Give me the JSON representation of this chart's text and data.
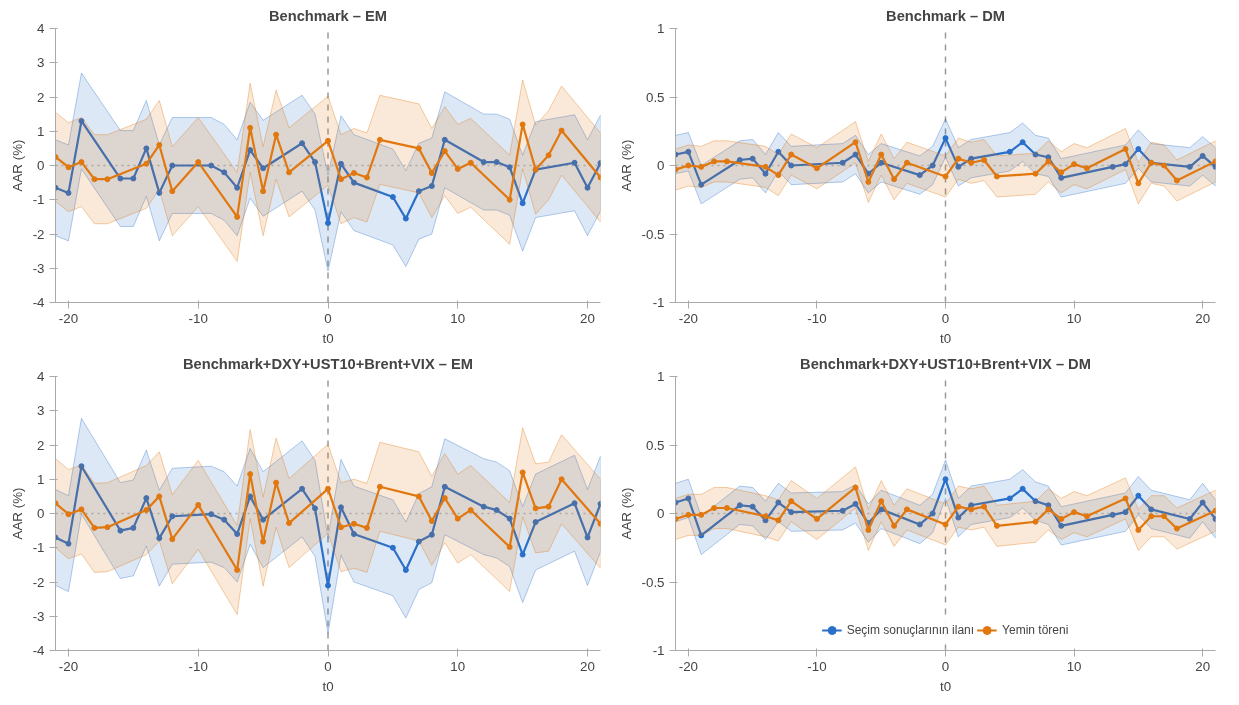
{
  "chart_data": [
    {
      "type": "line",
      "title": "Benchmark – EM",
      "xlabel": "t0",
      "ylabel": "AAR (%)",
      "xlim": [
        -21,
        21
      ],
      "xticks": [
        -20,
        -10,
        0,
        10,
        20
      ],
      "ylim": [
        -4,
        4
      ],
      "yticks": [
        -4,
        -3,
        -2,
        -1,
        0,
        1,
        2,
        3,
        4
      ],
      "grid": false,
      "marker": "circle",
      "ref_lines": [
        {
          "axis": "x",
          "value": 0,
          "line_style": "dashed",
          "color": "#999999"
        },
        {
          "axis": "y",
          "value": 0,
          "line_style": "dotted",
          "color": "#bbbbbb"
        }
      ],
      "series": [
        {
          "color": "#2a6fc9",
          "x": [
            -21,
            -20,
            -19,
            -16,
            -15,
            -14,
            -13,
            -12,
            -9,
            -8,
            -7,
            -6,
            -5,
            -2,
            -1,
            0,
            1,
            2,
            5,
            6,
            7,
            8,
            9,
            12,
            13,
            14,
            15,
            16,
            19,
            20,
            21
          ],
          "values": [
            -0.65,
            -0.8,
            1.3,
            -0.38,
            -0.38,
            0.5,
            -0.8,
            0.0,
            0.0,
            -0.2,
            -0.65,
            0.45,
            -0.08,
            0.65,
            0.1,
            -1.68,
            0.05,
            -0.5,
            -0.92,
            -1.55,
            -0.75,
            -0.6,
            0.75,
            0.1,
            0.1,
            -0.05,
            -1.1,
            -0.12,
            0.08,
            -0.65,
            0.07
          ],
          "lower": [
            -2.05,
            -2.2,
            -0.1,
            -1.78,
            -1.78,
            -0.9,
            -2.2,
            -1.4,
            -1.4,
            -1.6,
            -2.05,
            -0.95,
            -1.48,
            -0.75,
            -1.3,
            -3.08,
            -1.35,
            -1.9,
            -2.32,
            -2.95,
            -2.15,
            -2.0,
            -0.65,
            -1.3,
            -1.3,
            -1.45,
            -2.5,
            -1.52,
            -1.32,
            -2.05,
            -1.33
          ],
          "upper": [
            0.75,
            0.6,
            2.7,
            1.02,
            1.02,
            1.9,
            0.6,
            1.4,
            1.4,
            1.2,
            0.75,
            1.85,
            1.32,
            2.05,
            1.5,
            -0.28,
            1.45,
            0.9,
            0.48,
            -0.15,
            0.65,
            0.8,
            2.15,
            1.5,
            1.5,
            1.35,
            0.3,
            1.28,
            1.48,
            0.75,
            1.47
          ]
        },
        {
          "color": "#e0780f",
          "x": [
            -21,
            -20,
            -19,
            -18,
            -17,
            -14,
            -13,
            -12,
            -10,
            -7,
            -6,
            -5,
            -4,
            -3,
            0,
            1,
            2,
            3,
            4,
            7,
            8,
            9,
            10,
            11,
            14,
            15,
            16,
            17,
            18,
            21
          ],
          "values": [
            0.25,
            -0.05,
            0.1,
            -0.4,
            -0.4,
            0.05,
            0.6,
            -0.75,
            0.1,
            -1.5,
            1.1,
            -0.75,
            0.9,
            -0.2,
            0.72,
            -0.4,
            -0.22,
            -0.35,
            0.75,
            0.5,
            -0.22,
            0.42,
            -0.1,
            0.08,
            -1.0,
            1.2,
            -0.12,
            0.3,
            1.02,
            -0.35
          ],
          "lower": [
            -1.05,
            -1.35,
            -1.2,
            -1.7,
            -1.7,
            -1.25,
            -0.7,
            -2.05,
            -1.2,
            -2.8,
            -0.2,
            -2.05,
            -0.4,
            -1.5,
            -0.58,
            -1.7,
            -1.52,
            -1.65,
            -0.55,
            -0.8,
            -1.52,
            -0.88,
            -1.4,
            -1.22,
            -2.3,
            -0.1,
            -1.42,
            -1.0,
            -0.28,
            -1.65
          ],
          "upper": [
            1.55,
            1.25,
            1.4,
            0.9,
            0.9,
            1.35,
            1.9,
            0.55,
            1.4,
            -0.2,
            2.4,
            0.55,
            2.2,
            1.1,
            2.02,
            0.9,
            1.08,
            0.95,
            2.05,
            1.8,
            1.08,
            1.72,
            1.2,
            1.38,
            0.3,
            2.5,
            1.18,
            1.6,
            2.32,
            0.95
          ]
        }
      ]
    },
    {
      "type": "line",
      "title": "Benchmark – DM",
      "xlabel": "t0",
      "ylabel": "AAR (%)",
      "xlim": [
        -21,
        21
      ],
      "xticks": [
        -20,
        -10,
        0,
        10,
        20
      ],
      "ylim": [
        -1,
        1
      ],
      "yticks": [
        -1,
        -0.5,
        0,
        0.5,
        1
      ],
      "grid": false,
      "marker": "circle",
      "ref_lines": [
        {
          "axis": "x",
          "value": 0,
          "line_style": "dashed",
          "color": "#999999"
        },
        {
          "axis": "y",
          "value": 0,
          "line_style": "dotted",
          "color": "#bbbbbb"
        }
      ],
      "series": [
        {
          "color": "#2a6fc9",
          "x": [
            -21,
            -20,
            -19,
            -16,
            -15,
            -14,
            -13,
            -12,
            -8,
            -7,
            -6,
            -5,
            -2,
            -1,
            0,
            1,
            2,
            5,
            6,
            7,
            8,
            9,
            13,
            14,
            15,
            16,
            19,
            20,
            21
          ],
          "values": [
            0.08,
            0.1,
            -0.14,
            0.04,
            0.05,
            -0.06,
            0.1,
            0.0,
            0.02,
            0.08,
            -0.06,
            0.02,
            -0.07,
            0.0,
            0.2,
            -0.01,
            0.05,
            0.1,
            0.17,
            0.08,
            0.06,
            -0.09,
            -0.01,
            0.01,
            0.12,
            0.02,
            -0.01,
            0.07,
            -0.01
          ],
          "lower": [
            -0.06,
            -0.04,
            -0.28,
            -0.1,
            -0.09,
            -0.2,
            -0.04,
            -0.14,
            -0.12,
            -0.06,
            -0.2,
            -0.12,
            -0.21,
            -0.14,
            0.06,
            -0.15,
            -0.09,
            -0.04,
            0.03,
            -0.06,
            -0.08,
            -0.23,
            -0.15,
            -0.13,
            -0.02,
            -0.12,
            -0.15,
            -0.07,
            -0.15
          ],
          "upper": [
            0.22,
            0.24,
            0.0,
            0.18,
            0.19,
            0.08,
            0.24,
            0.14,
            0.16,
            0.22,
            0.08,
            0.16,
            0.07,
            0.14,
            0.34,
            0.13,
            0.19,
            0.24,
            0.31,
            0.22,
            0.2,
            0.05,
            0.13,
            0.15,
            0.26,
            0.16,
            0.13,
            0.21,
            0.13
          ]
        },
        {
          "color": "#e0780f",
          "x": [
            -21,
            -20,
            -19,
            -18,
            -17,
            -14,
            -13,
            -12,
            -10,
            -7,
            -6,
            -5,
            -4,
            -3,
            0,
            1,
            2,
            3,
            4,
            7,
            8,
            9,
            10,
            11,
            14,
            15,
            16,
            17,
            18,
            21
          ],
          "values": [
            -0.03,
            0.0,
            -0.01,
            0.03,
            0.03,
            -0.01,
            -0.07,
            0.08,
            -0.02,
            0.17,
            -0.12,
            0.08,
            -0.1,
            0.02,
            -0.08,
            0.05,
            0.02,
            0.04,
            -0.08,
            -0.06,
            0.03,
            -0.05,
            0.01,
            -0.02,
            0.12,
            -0.13,
            0.02,
            0.0,
            -0.11,
            0.03
          ],
          "lower": [
            -0.18,
            -0.15,
            -0.16,
            -0.12,
            -0.12,
            -0.16,
            -0.22,
            -0.07,
            -0.17,
            0.02,
            -0.27,
            -0.07,
            -0.25,
            -0.13,
            -0.23,
            -0.1,
            -0.13,
            -0.11,
            -0.23,
            -0.21,
            -0.12,
            -0.2,
            -0.14,
            -0.17,
            -0.03,
            -0.28,
            -0.13,
            -0.15,
            -0.26,
            -0.12
          ],
          "upper": [
            0.12,
            0.15,
            0.14,
            0.18,
            0.18,
            0.14,
            0.08,
            0.23,
            0.13,
            0.32,
            0.03,
            0.23,
            0.05,
            0.17,
            0.07,
            0.2,
            0.17,
            0.19,
            0.07,
            0.09,
            0.18,
            0.1,
            0.16,
            0.13,
            0.27,
            0.02,
            0.17,
            0.15,
            0.04,
            0.18
          ]
        }
      ]
    },
    {
      "type": "line",
      "title": "Benchmark+DXY+UST10+Brent+VIX – EM",
      "xlabel": "t0",
      "ylabel": "AAR (%)",
      "xlim": [
        -21,
        21
      ],
      "xticks": [
        -20,
        -10,
        0,
        10,
        20
      ],
      "ylim": [
        -4,
        4
      ],
      "yticks": [
        -4,
        -3,
        -2,
        -1,
        0,
        1,
        2,
        3,
        4
      ],
      "grid": false,
      "marker": "circle",
      "ref_lines": [
        {
          "axis": "x",
          "value": 0,
          "line_style": "dashed",
          "color": "#999999"
        },
        {
          "axis": "y",
          "value": 0,
          "line_style": "dotted",
          "color": "#bbbbbb"
        }
      ],
      "series": [
        {
          "color": "#2a6fc9",
          "x": [
            -21,
            -20,
            -19,
            -16,
            -15,
            -14,
            -13,
            -12,
            -9,
            -8,
            -7,
            -6,
            -5,
            -2,
            -1,
            0,
            1,
            2,
            5,
            6,
            7,
            8,
            9,
            12,
            13,
            14,
            15,
            16,
            19,
            20,
            21
          ],
          "values": [
            -0.7,
            -0.88,
            1.38,
            -0.5,
            -0.42,
            0.45,
            -0.72,
            -0.08,
            -0.02,
            -0.18,
            -0.6,
            0.5,
            -0.18,
            0.72,
            0.15,
            -2.1,
            0.18,
            -0.6,
            -1.0,
            -1.65,
            -0.82,
            -0.62,
            0.78,
            0.2,
            0.1,
            -0.15,
            -1.2,
            -0.25,
            0.3,
            -0.7,
            0.28
          ],
          "lower": [
            -2.1,
            -2.28,
            -0.02,
            -1.9,
            -1.82,
            -0.95,
            -2.12,
            -1.48,
            -1.42,
            -1.58,
            -2.0,
            -0.9,
            -1.58,
            -0.68,
            -1.25,
            -3.5,
            -1.22,
            -2.0,
            -2.4,
            -3.05,
            -2.22,
            -2.02,
            -0.62,
            -1.2,
            -1.3,
            -1.55,
            -2.6,
            -1.65,
            -1.1,
            -2.1,
            -1.12
          ],
          "upper": [
            0.7,
            0.52,
            2.78,
            0.9,
            0.98,
            1.85,
            0.68,
            1.32,
            1.38,
            1.22,
            0.8,
            1.9,
            1.22,
            2.12,
            1.55,
            -0.7,
            1.58,
            0.8,
            0.4,
            -0.25,
            0.58,
            0.78,
            2.18,
            1.6,
            1.5,
            1.25,
            0.2,
            1.15,
            1.7,
            0.7,
            1.68
          ]
        },
        {
          "color": "#e0780f",
          "x": [
            -21,
            -20,
            -19,
            -18,
            -17,
            -14,
            -13,
            -12,
            -10,
            -7,
            -6,
            -5,
            -4,
            -3,
            0,
            1,
            2,
            3,
            4,
            7,
            8,
            9,
            10,
            11,
            14,
            15,
            16,
            17,
            18,
            21
          ],
          "values": [
            0.3,
            -0.02,
            0.12,
            -0.42,
            -0.4,
            0.1,
            0.5,
            -0.75,
            0.25,
            -1.65,
            1.15,
            -0.82,
            0.9,
            -0.28,
            0.72,
            -0.4,
            -0.3,
            -0.42,
            0.78,
            0.5,
            -0.22,
            0.45,
            -0.15,
            0.1,
            -0.98,
            1.2,
            0.15,
            0.2,
            1.0,
            -0.3
          ],
          "lower": [
            -1.0,
            -1.32,
            -1.18,
            -1.72,
            -1.7,
            -1.2,
            -0.8,
            -2.05,
            -1.05,
            -2.95,
            -0.15,
            -2.12,
            -0.4,
            -1.58,
            -0.58,
            -1.7,
            -1.6,
            -1.72,
            -0.52,
            -0.8,
            -1.52,
            -0.85,
            -1.45,
            -1.2,
            -2.28,
            -0.1,
            -1.15,
            -1.1,
            -0.3,
            -1.6
          ],
          "upper": [
            1.6,
            1.28,
            1.42,
            0.88,
            0.9,
            1.4,
            1.8,
            0.55,
            1.55,
            -0.35,
            2.45,
            0.48,
            2.2,
            1.02,
            2.02,
            0.9,
            1.0,
            0.88,
            2.08,
            1.8,
            1.08,
            1.75,
            1.15,
            1.4,
            0.32,
            2.5,
            1.45,
            1.5,
            2.3,
            1.0
          ]
        }
      ]
    },
    {
      "type": "line",
      "title": "Benchmark+DXY+UST10+Brent+VIX – DM",
      "xlabel": "t0",
      "ylabel": "AAR (%)",
      "xlim": [
        -21,
        21
      ],
      "xticks": [
        -20,
        -10,
        0,
        10,
        20
      ],
      "ylim": [
        -1,
        1
      ],
      "yticks": [
        -1,
        -0.5,
        0,
        0.5,
        1
      ],
      "grid": false,
      "marker": "circle",
      "legend": "bottom",
      "ref_lines": [
        {
          "axis": "x",
          "value": 0,
          "line_style": "dashed",
          "color": "#999999"
        },
        {
          "axis": "y",
          "value": 0,
          "line_style": "dotted",
          "color": "#bbbbbb"
        }
      ],
      "series": [
        {
          "name": "Seçim sonuçlarının ilanı",
          "color": "#2a6fc9",
          "x": [
            -21,
            -20,
            -19,
            -16,
            -15,
            -14,
            -13,
            -12,
            -8,
            -7,
            -6,
            -5,
            -2,
            -1,
            0,
            1,
            2,
            5,
            6,
            7,
            8,
            9,
            13,
            14,
            15,
            16,
            19,
            20,
            21
          ],
          "values": [
            0.08,
            0.11,
            -0.16,
            0.06,
            0.05,
            -0.05,
            0.08,
            0.01,
            0.02,
            0.07,
            -0.07,
            0.03,
            -0.08,
            0.0,
            0.25,
            -0.03,
            0.06,
            0.11,
            0.18,
            0.09,
            0.06,
            -0.09,
            -0.01,
            0.01,
            0.13,
            0.03,
            -0.04,
            0.08,
            -0.04
          ],
          "lower": [
            -0.06,
            -0.03,
            -0.3,
            -0.08,
            -0.09,
            -0.19,
            -0.06,
            -0.13,
            -0.12,
            -0.07,
            -0.21,
            -0.11,
            -0.22,
            -0.14,
            0.11,
            -0.17,
            -0.08,
            -0.03,
            0.04,
            -0.05,
            -0.08,
            -0.23,
            -0.15,
            -0.13,
            -0.01,
            -0.11,
            -0.18,
            -0.06,
            -0.18
          ],
          "upper": [
            0.22,
            0.25,
            -0.02,
            0.2,
            0.19,
            0.09,
            0.22,
            0.15,
            0.16,
            0.21,
            0.07,
            0.17,
            0.06,
            0.14,
            0.39,
            0.11,
            0.2,
            0.25,
            0.32,
            0.23,
            0.2,
            0.05,
            0.13,
            0.15,
            0.27,
            0.17,
            0.1,
            0.22,
            0.1
          ]
        },
        {
          "name": "Yemin töreni",
          "color": "#e0780f",
          "x": [
            -21,
            -20,
            -19,
            -18,
            -17,
            -14,
            -13,
            -12,
            -10,
            -7,
            -6,
            -5,
            -4,
            -3,
            0,
            1,
            2,
            3,
            4,
            7,
            8,
            9,
            10,
            11,
            14,
            15,
            16,
            17,
            18,
            21
          ],
          "values": [
            -0.04,
            -0.01,
            -0.01,
            0.04,
            0.04,
            -0.02,
            -0.05,
            0.09,
            -0.04,
            0.19,
            -0.12,
            0.09,
            -0.09,
            0.03,
            -0.08,
            0.05,
            0.03,
            0.05,
            -0.09,
            -0.06,
            0.03,
            -0.04,
            0.01,
            -0.02,
            0.11,
            -0.12,
            -0.02,
            -0.02,
            -0.11,
            0.02
          ],
          "lower": [
            -0.19,
            -0.16,
            -0.16,
            -0.11,
            -0.11,
            -0.17,
            -0.2,
            -0.06,
            -0.19,
            0.04,
            -0.27,
            -0.06,
            -0.24,
            -0.12,
            -0.23,
            -0.1,
            -0.12,
            -0.1,
            -0.24,
            -0.21,
            -0.12,
            -0.19,
            -0.14,
            -0.17,
            -0.04,
            -0.27,
            -0.17,
            -0.17,
            -0.26,
            -0.13
          ],
          "upper": [
            0.11,
            0.14,
            0.14,
            0.19,
            0.19,
            0.13,
            0.1,
            0.24,
            0.11,
            0.34,
            0.03,
            0.24,
            0.06,
            0.18,
            0.07,
            0.2,
            0.18,
            0.2,
            0.06,
            0.09,
            0.18,
            0.11,
            0.16,
            0.13,
            0.26,
            0.03,
            0.13,
            0.13,
            0.04,
            0.17
          ]
        }
      ]
    }
  ]
}
